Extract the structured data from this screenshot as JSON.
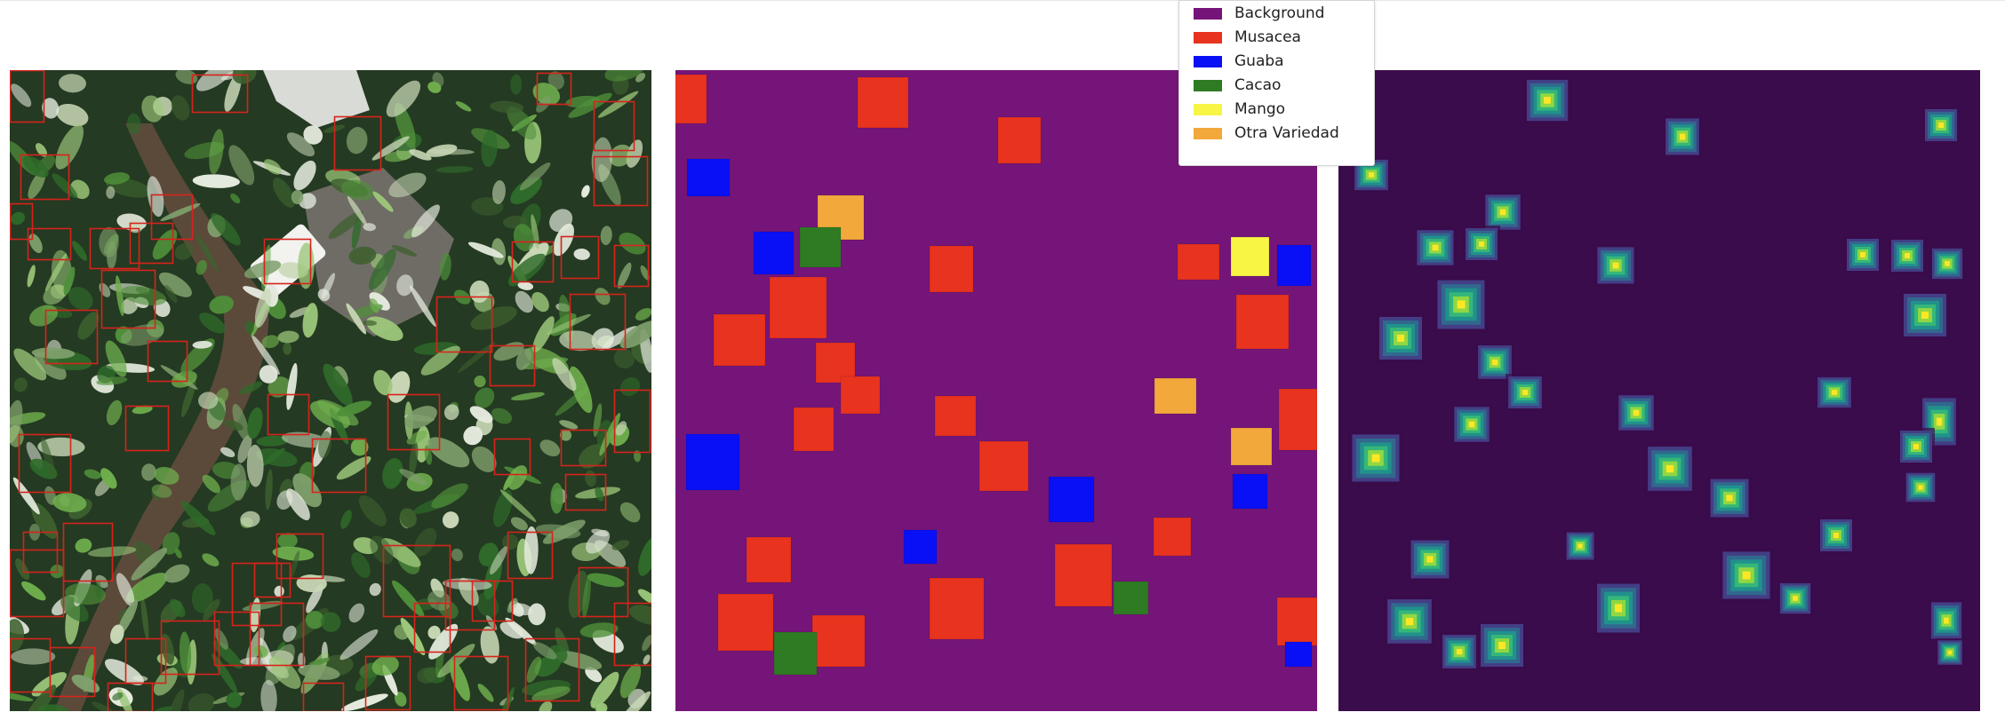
{
  "legend": {
    "items": [
      {
        "label": "Background",
        "color": "#761579"
      },
      {
        "label": "Musacea",
        "color": "#e8331f"
      },
      {
        "label": "Guaba",
        "color": "#0a10f5"
      },
      {
        "label": "Cacao",
        "color": "#2e7b23"
      },
      {
        "label": "Mango",
        "color": "#f8f545"
      },
      {
        "label": "Otra Variedad",
        "color": "#f3a83b"
      }
    ]
  },
  "colors": {
    "mask_background": "#761579",
    "heatmap_background": "#3b0c4b",
    "bbox_stroke": "#d6231c"
  }
}
